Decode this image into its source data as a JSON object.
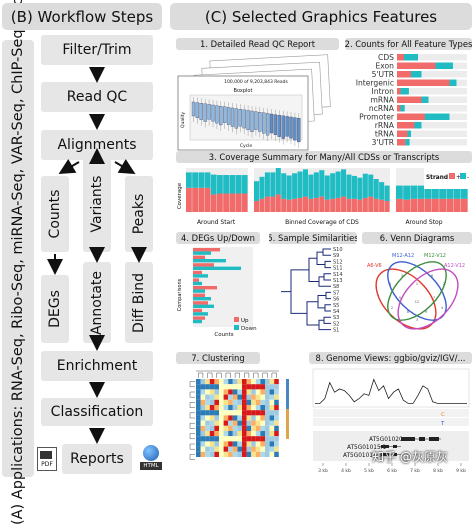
{
  "left": {
    "apps_label": "(A) Applications:  RNA-Seq, Ribo-Seq, miRNA-Seq, VAR-Seq, ChIP-Seq, etc.",
    "workflow_title": "(B) Workflow Steps",
    "steps": {
      "filter": "Filter/Trim",
      "readqc": "Read QC",
      "align": "Alignments",
      "counts": "Counts",
      "variants": "Variants",
      "peaks": "Peaks",
      "degs": "DEGs",
      "annotate": "Annotate",
      "diffbind": "Diff Bind",
      "enrich": "Enrichment",
      "classif": "Classification",
      "reports": "Reports"
    },
    "pdf_label": "PDF",
    "html_label": "HTML"
  },
  "right": {
    "title": "(C) Selected Graphics Features",
    "p1": {
      "title": "1. Detailed Read QC Report",
      "reads_label": "100,000 of 9,203,843 Reads",
      "box_title": "Boxplot",
      "ylabel": "Quality",
      "xlabel": "Cycle"
    },
    "p2": {
      "title": "2. Counts for All Feature Types",
      "features": [
        "CDS",
        "Exon",
        "5'UTR",
        "Intergenic",
        "Intron",
        "mRNA",
        "ncRNA",
        "Promoter",
        "rRNA",
        "tRNA",
        "3'UTR"
      ],
      "red": [
        0.1,
        0.55,
        0.2,
        0.75,
        0.05,
        0.35,
        0.05,
        0.4,
        0.25,
        0.15,
        0.12
      ],
      "teal": [
        0.2,
        0.25,
        0.15,
        0.1,
        0.12,
        0.1,
        0.06,
        0.35,
        0.1,
        0.05,
        0.06
      ],
      "colors": {
        "red": "#f26b6b",
        "teal": "#1fbcc4",
        "grey": "#ececec"
      }
    },
    "p3": {
      "title": "3. Coverage Summary for Many/All CDSs or Transcripts",
      "ylabel": "Coverage",
      "start_label": "Around Start",
      "mid_label": "Binned Coverage of CDS",
      "stop_label": "Around Stop",
      "legend_title": "Strand",
      "legend_plus": "+",
      "legend_minus": "-",
      "start_red": [
        0.55,
        0.55,
        0.55,
        0.55,
        0.4,
        0.42,
        0.42,
        0.42,
        0.42,
        0.42
      ],
      "start_teal": [
        0.35,
        0.35,
        0.35,
        0.35,
        0.45,
        0.42,
        0.42,
        0.42,
        0.42,
        0.42
      ],
      "mid_red": [
        0.25,
        0.3,
        0.35,
        0.35,
        0.4,
        0.3,
        0.28,
        0.3,
        0.32,
        0.35,
        0.3,
        0.32,
        0.35,
        0.28,
        0.3,
        0.32,
        0.35,
        0.3,
        0.3,
        0.28,
        0.32,
        0.35,
        0.3,
        0.28,
        0.25
      ],
      "mid_teal": [
        0.45,
        0.5,
        0.55,
        0.55,
        0.6,
        0.58,
        0.55,
        0.58,
        0.6,
        0.62,
        0.55,
        0.58,
        0.6,
        0.55,
        0.58,
        0.6,
        0.62,
        0.55,
        0.52,
        0.5,
        0.55,
        0.5,
        0.45,
        0.4,
        0.35
      ],
      "stop_red": [
        0.3,
        0.28,
        0.3,
        0.3,
        0.3,
        0.3,
        0.3,
        0.3,
        0.3,
        0.3
      ],
      "stop_teal": [
        0.3,
        0.32,
        0.3,
        0.3,
        0.3,
        0.3,
        0.3,
        0.3,
        0.3,
        0.3
      ]
    },
    "p4": {
      "title": "4. DEGs Up/Down",
      "ylabel": "Comparisons",
      "xlabel": "Counts",
      "legend_up": "Up",
      "legend_down": "Down",
      "up": [
        0.45,
        0.2,
        0.35,
        0.15,
        0.1,
        0.4,
        0.2,
        0.25,
        0.15,
        0.2
      ],
      "down": [
        0.3,
        0.55,
        0.8,
        0.25,
        0.15,
        0.2,
        0.3,
        0.35,
        0.25,
        0.15
      ]
    },
    "p5": {
      "title": "5. Sample Similarities",
      "labels": [
        "S10",
        "S9",
        "S12",
        "S11",
        "S14",
        "S13",
        "S8",
        "S7",
        "S6",
        "S5",
        "S4",
        "S3",
        "S2",
        "S1"
      ]
    },
    "p6": {
      "title": "6. Venn Diagrams",
      "labels": [
        "A6-V6",
        "M12-A12",
        "M12-V12",
        "A12-V12"
      ]
    },
    "p7": {
      "title": "7. Clustering"
    },
    "p8": {
      "title": "8. Genome Views: ggbio/gviz/IGV/...",
      "genes": [
        "AT5G01020",
        "AT5G01015.1",
        "AT5G01015.2"
      ],
      "ticks": [
        "3 kb",
        "4 kb",
        "5 kb",
        "6 kb",
        "7 kb",
        "8 kb",
        "9 kb"
      ],
      "signal": [
        0.05,
        0.05,
        0.2,
        0.7,
        0.4,
        0.5,
        0.45,
        0.3,
        0.1,
        0.2,
        0.35,
        0.3,
        0.8,
        0.45,
        0.6,
        0.2,
        0.4,
        0.5,
        0.15,
        0.05,
        0.05,
        0.3,
        0.6,
        0.5,
        0.1,
        0.05,
        0.05,
        0.05,
        0.05,
        0.05,
        0.05,
        0.05
      ],
      "track_c": "C",
      "track_t": "T"
    }
  },
  "watermark": "知乎 @灰原灰"
}
